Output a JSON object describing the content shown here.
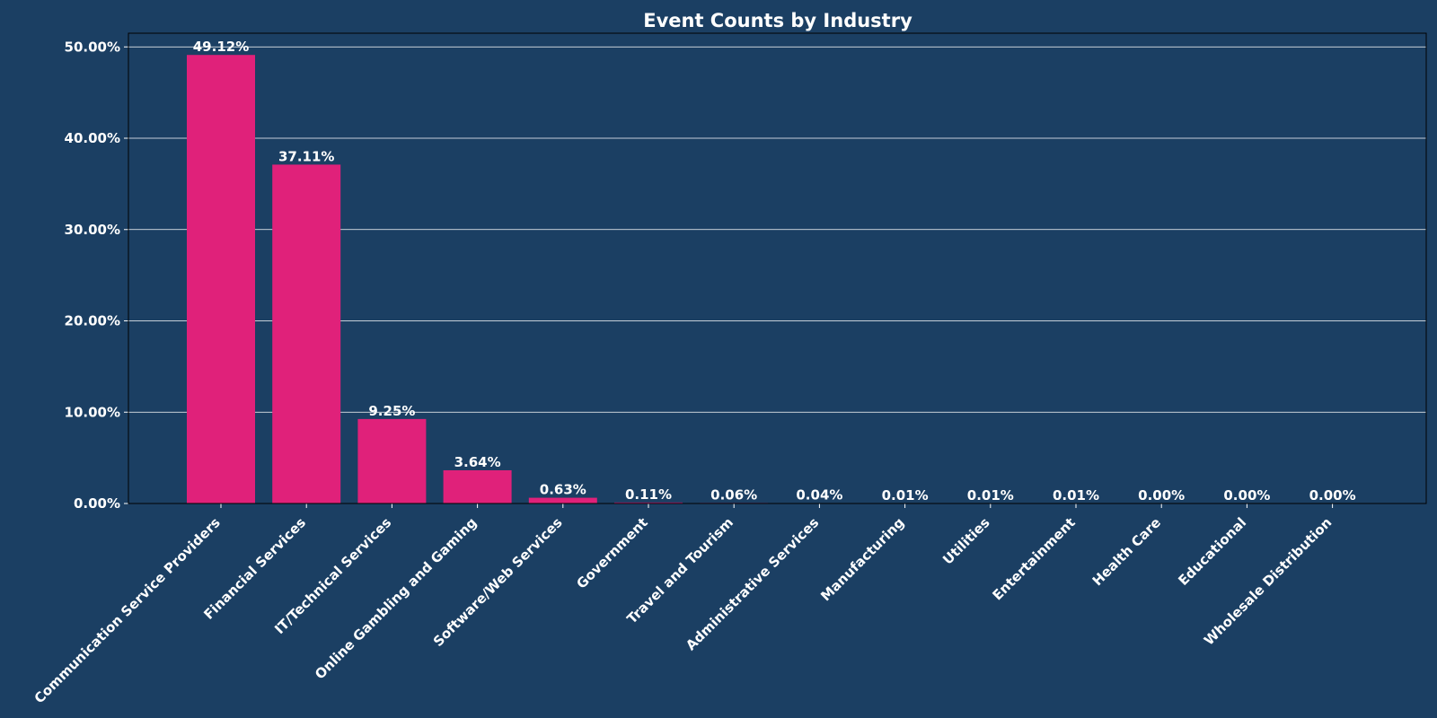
{
  "colors": {
    "background": "#1b3f63",
    "bar": "#e0217a",
    "text": "#ffffff",
    "grid": "#ffffff"
  },
  "chart_data": {
    "type": "bar",
    "title": "Event Counts by Industry",
    "xlabel": "",
    "ylabel": "",
    "ylim": [
      0,
      51.5
    ],
    "y_ticks": [
      0,
      10,
      20,
      30,
      40,
      50
    ],
    "y_tick_labels": [
      "0.00%",
      "10.00%",
      "20.00%",
      "30.00%",
      "40.00%",
      "50.00%"
    ],
    "grid": "horizontal",
    "categories": [
      "Communication Service Providers",
      "Financial Services",
      "IT/Technical Services",
      "Online Gambling and Gaming",
      "Software/Web Services",
      "Government",
      "Travel and Tourism",
      "Administrative Services",
      "Manufacturing",
      "Utilities",
      "Entertainment",
      "Health Care",
      "Educational",
      "Wholesale Distribution"
    ],
    "values": [
      49.12,
      37.11,
      9.25,
      3.64,
      0.63,
      0.11,
      0.06,
      0.04,
      0.01,
      0.01,
      0.01,
      0.0,
      0.0,
      0.0
    ],
    "data_labels": [
      "49.12%",
      "37.11%",
      "9.25%",
      "3.64%",
      "0.63%",
      "0.11%",
      "0.06%",
      "0.04%",
      "0.01%",
      "0.01%",
      "0.01%",
      "0.00%",
      "0.00%",
      "0.00%"
    ]
  }
}
